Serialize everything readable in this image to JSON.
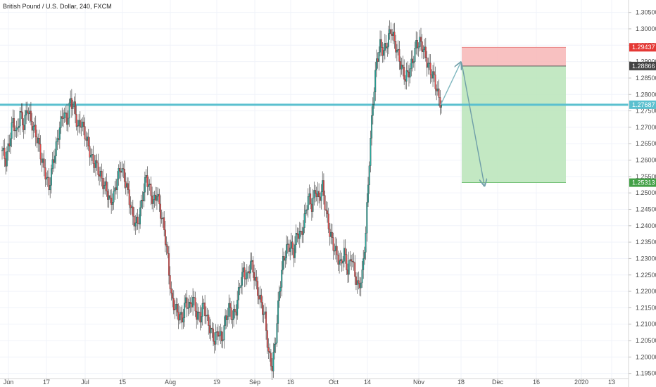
{
  "chart_data": {
    "type": "candlestick",
    "title": "British Pound / U.S. Dollar, 240, FXCM",
    "ylim": [
      1.193,
      1.3075
    ],
    "y_ticks": [
      "1.30500",
      "1.30000",
      "1.29500",
      "1.29000",
      "1.28500",
      "1.28000",
      "1.27500",
      "1.27000",
      "1.26500",
      "1.26000",
      "1.25500",
      "1.25000",
      "1.24500",
      "1.24000",
      "1.23500",
      "1.23000",
      "1.22500",
      "1.22000",
      "1.21500",
      "1.21000",
      "1.20500",
      "1.20000",
      "1.19500"
    ],
    "x_ticks": [
      "Jun",
      "17",
      "Jul",
      "15",
      "Aug",
      "19",
      "Sep",
      "16",
      "Oct",
      "14",
      "Nov",
      "18",
      "Dec",
      "16",
      "2020",
      "13"
    ],
    "horizontal_level": {
      "value": 1.27687,
      "label": "1.27687",
      "color": "#5bc0cf"
    },
    "position": {
      "entry": {
        "value": 1.28866,
        "label": "1.28866"
      },
      "stop": {
        "value": 1.29437,
        "label": "1.29437"
      },
      "target": {
        "value": 1.25313,
        "label": "1.25313"
      }
    },
    "candles_series": [
      1.263,
      1.2598,
      1.2655,
      1.272,
      1.268,
      1.2742,
      1.2705,
      1.276,
      1.2718,
      1.269,
      1.2655,
      1.26,
      1.256,
      1.2515,
      1.2588,
      1.264,
      1.27,
      1.2745,
      1.272,
      1.278,
      1.276,
      1.27,
      1.2715,
      1.268,
      1.264,
      1.26,
      1.2588,
      1.256,
      1.253,
      1.251,
      1.247,
      1.249,
      1.2545,
      1.258,
      1.2545,
      1.25,
      1.244,
      1.2405,
      1.242,
      1.249,
      1.255,
      1.251,
      1.247,
      1.25,
      1.244,
      1.239,
      1.23,
      1.218,
      1.215,
      1.213,
      1.2115,
      1.217,
      1.215,
      1.218,
      1.213,
      1.212,
      1.216,
      1.211,
      1.208,
      1.205,
      1.208,
      1.205,
      1.211,
      1.215,
      1.212,
      1.2145,
      1.222,
      1.226,
      1.224,
      1.229,
      1.225,
      1.22,
      1.216,
      1.212,
      1.201,
      1.197,
      1.206,
      1.22,
      1.229,
      1.233,
      1.234,
      1.232,
      1.238,
      1.237,
      1.242,
      1.249,
      1.246,
      1.251,
      1.248,
      1.252,
      1.244,
      1.238,
      1.234,
      1.231,
      1.228,
      1.232,
      1.226,
      1.231,
      1.225,
      1.221,
      1.225,
      1.238,
      1.26,
      1.278,
      1.29,
      1.295,
      1.293,
      1.296,
      1.3,
      1.296,
      1.292,
      1.288,
      1.285,
      1.287,
      1.29,
      1.295,
      1.296,
      1.294,
      1.29,
      1.287,
      1.285,
      1.28,
      1.2768
    ],
    "series": [
      {
        "name": "",
        "color_up": "#26a69a",
        "color_down": "#e04a4a"
      }
    ]
  }
}
